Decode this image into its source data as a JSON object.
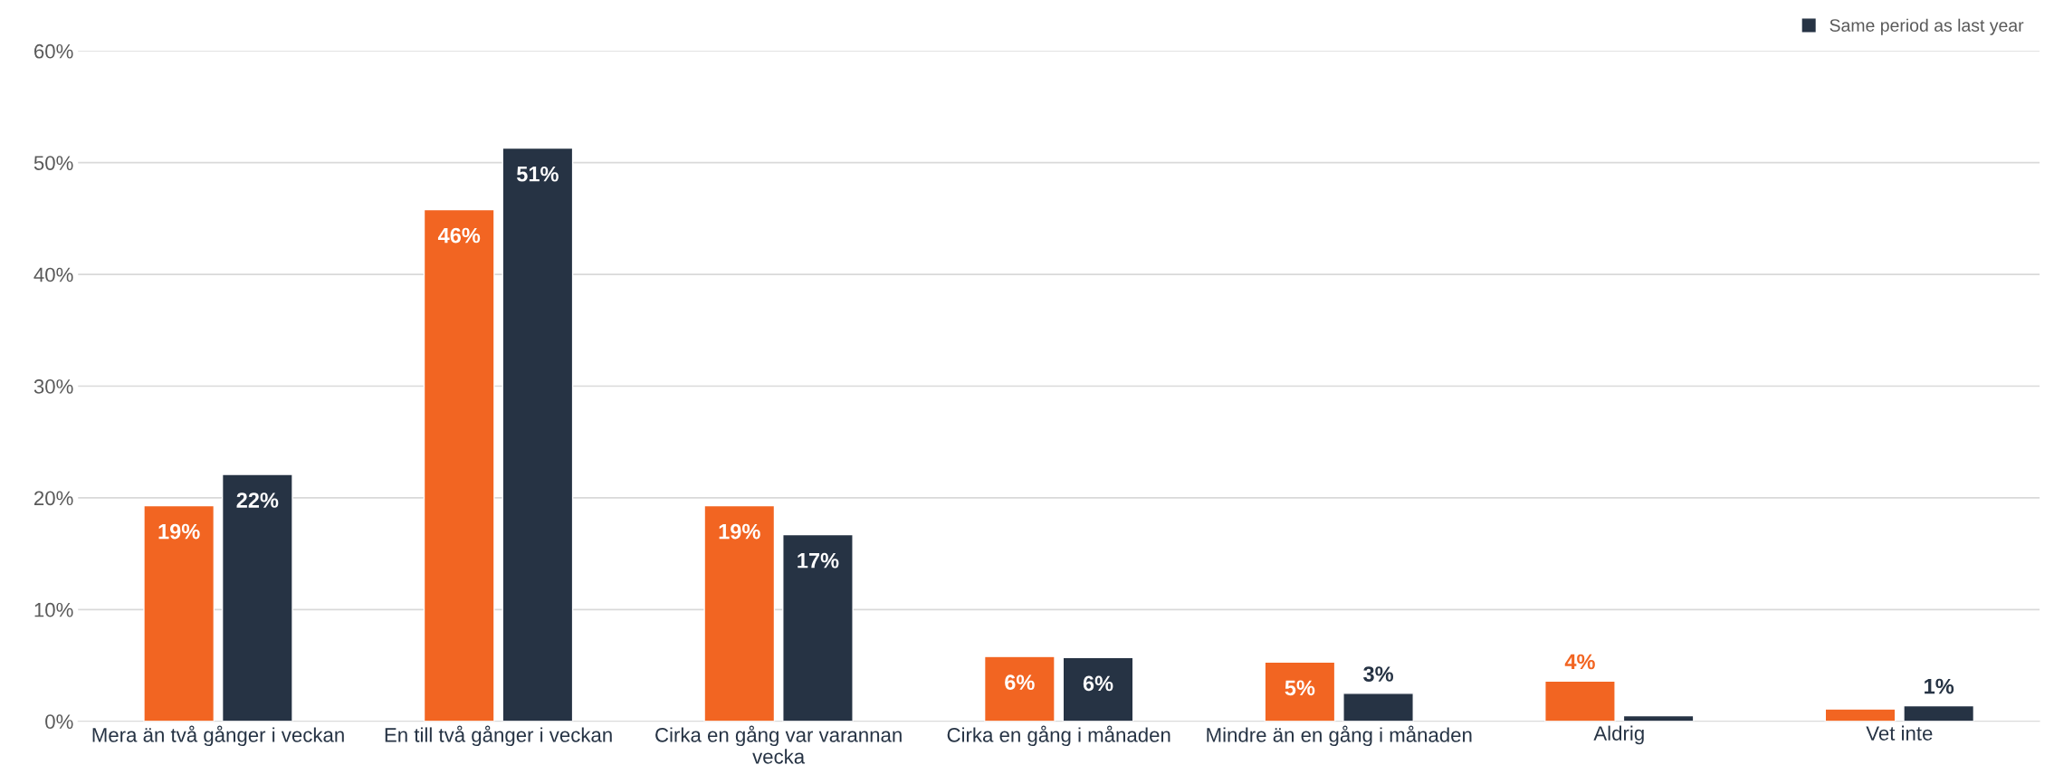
{
  "chart_data": {
    "type": "bar",
    "categories": [
      "Mera än två gånger i veckan",
      "En till två gånger i veckan",
      "Cirka en gång var varannan vecka",
      "Cirka en gång i månaden",
      "Mindre än en gång i månaden",
      "Aldrig",
      "Vet inte"
    ],
    "series": [
      {
        "color": "#f26522",
        "values": [
          19.3,
          45.8,
          19.3,
          5.8,
          5.3,
          3.6,
          1.1
        ],
        "value_labels": [
          "19%",
          "46%",
          "19%",
          "6%",
          "5%",
          "4%",
          null
        ]
      },
      {
        "name": "Same period as last year",
        "color": "#263344",
        "values": [
          22.1,
          51.3,
          16.7,
          5.7,
          2.5,
          0.5,
          1.4
        ],
        "value_labels": [
          "22%",
          "51%",
          "17%",
          "6%",
          "3%",
          null,
          "1%"
        ]
      }
    ],
    "ylim": [
      0,
      60
    ],
    "yticks": [
      {
        "value": 0,
        "label": "0%"
      },
      {
        "value": 10,
        "label": "10%"
      },
      {
        "value": 20,
        "label": "20%"
      },
      {
        "value": 30,
        "label": "30%"
      },
      {
        "value": 40,
        "label": "40%"
      },
      {
        "value": 50,
        "label": "50%"
      },
      {
        "value": 60,
        "label": "60%"
      }
    ],
    "grid": "y",
    "legend": "top right"
  }
}
